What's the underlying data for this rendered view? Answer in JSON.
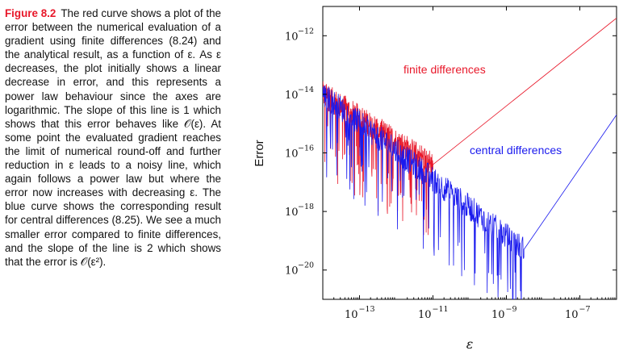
{
  "caption": {
    "label": "Figure 8.2",
    "text": "The red curve shows a plot of the error between the numerical evaluation of a gradient using finite differences (8.24) and the analytical result, as a function of ε. As ε decreases, the plot initially shows a linear decrease in error, and this represents a power law behaviour since the axes are logarithmic. The slope of this line is 1 which shows that this error behaves like 𝒪(ε). At some point the evaluated gradient reaches the limit of numerical round-off and further reduction in ε leads to a noisy line, which again follows a power law but where the error now increases with decreasing ε. The blue curve shows the corresponding result for central differences (8.25). We see a much smaller error compared to finite differences, and the slope of the line is 2 which shows that the error is 𝒪(ε²)."
  },
  "chart_data": {
    "type": "line",
    "xscale": "log",
    "yscale": "log",
    "xlim": [
      1e-14,
      1e-06
    ],
    "ylim": [
      1e-21,
      1e-11
    ],
    "xlabel": "ε",
    "ylabel": "Error",
    "xticks": [
      {
        "value": 1e-13,
        "base": "10",
        "exp": "−13"
      },
      {
        "value": 1e-11,
        "base": "10",
        "exp": "−11"
      },
      {
        "value": 1e-09,
        "base": "10",
        "exp": "−9"
      },
      {
        "value": 1e-07,
        "base": "10",
        "exp": "−7"
      }
    ],
    "yticks": [
      {
        "value": 1e-12,
        "base": "10",
        "exp": "−12"
      },
      {
        "value": 1e-14,
        "base": "10",
        "exp": "−14"
      },
      {
        "value": 1e-16,
        "base": "10",
        "exp": "−16"
      },
      {
        "value": 1e-18,
        "base": "10",
        "exp": "−18"
      },
      {
        "value": 1e-20,
        "base": "10",
        "exp": "−20"
      }
    ],
    "grid": false,
    "series": [
      {
        "name": "finite differences",
        "color": "#e8182a",
        "trend": [
          [
            1e-06,
            4e-12
          ],
          [
            1e-11,
            4e-17
          ]
        ],
        "noisy": [
          [
            1e-14,
            1e-14
          ],
          [
            1e-11,
            4e-17
          ]
        ]
      },
      {
        "name": "central differences",
        "color": "#1a1aee",
        "trend": [
          [
            1e-06,
            2e-15
          ],
          [
            3e-09,
            5e-20
          ]
        ],
        "noisy": [
          [
            1e-14,
            1e-14
          ],
          [
            3e-09,
            5e-20
          ]
        ]
      }
    ]
  }
}
